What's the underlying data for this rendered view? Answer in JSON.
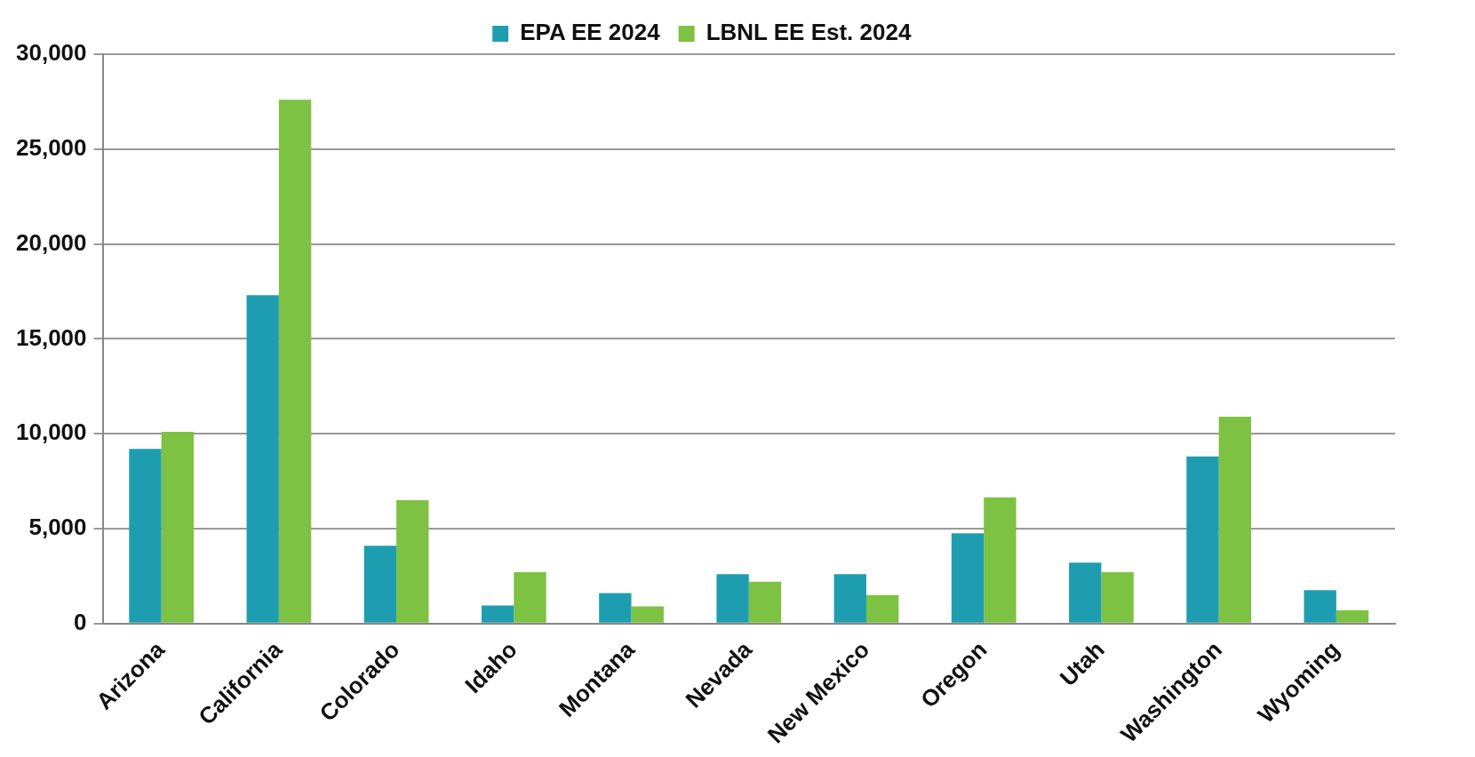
{
  "chart_data": {
    "type": "bar",
    "categories": [
      "Arizona",
      "California",
      "Colorado",
      "Idaho",
      "Montana",
      "Nevada",
      "New Mexico",
      "Oregon",
      "Utah",
      "Washington",
      "Wyoming"
    ],
    "series": [
      {
        "name": "EPA EE 2024",
        "color": "#1f9db0",
        "values": [
          9200,
          17300,
          4100,
          950,
          1600,
          2600,
          2600,
          4750,
          3200,
          8800,
          1750
        ]
      },
      {
        "name": "LBNL EE Est. 2024",
        "color": "#7dc242",
        "values": [
          10100,
          27600,
          6500,
          2700,
          900,
          2200,
          1500,
          6650,
          2700,
          10900,
          700
        ]
      }
    ],
    "ylim": [
      0,
      30000
    ],
    "yticks": [
      {
        "value": 0,
        "label": "0"
      },
      {
        "value": 5000,
        "label": "5,000"
      },
      {
        "value": 10000,
        "label": "10,000"
      },
      {
        "value": 15000,
        "label": "15,000"
      },
      {
        "value": 20000,
        "label": "20,000"
      },
      {
        "value": 25000,
        "label": "25,000"
      },
      {
        "value": 30000,
        "label": "30,000"
      }
    ],
    "grid": "y",
    "legend": "top"
  }
}
